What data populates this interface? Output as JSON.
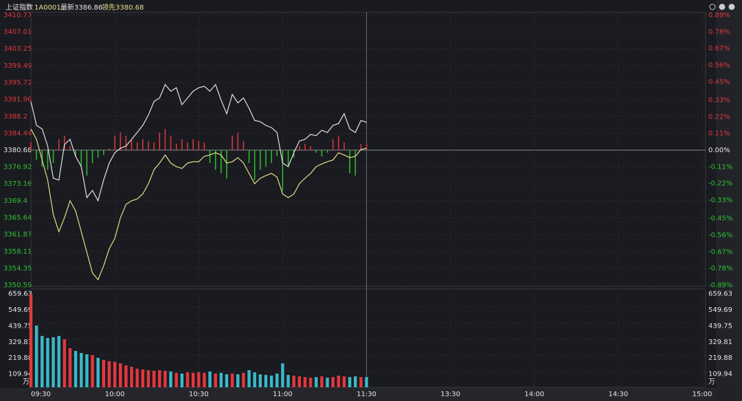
{
  "header": {
    "name": "上证指数",
    "code": "1A0001",
    "latest": "最新3386.86",
    "lead": "领先3380.68"
  },
  "chart_data": [
    {
      "type": "line",
      "x": [
        0,
        2,
        4,
        6,
        8,
        10,
        12,
        14,
        16,
        18,
        20,
        22,
        24,
        26,
        28,
        30,
        32,
        34,
        36,
        38,
        40,
        42,
        44,
        46,
        48,
        50,
        52,
        54,
        56,
        58,
        60,
        62,
        64,
        66,
        68,
        70,
        72,
        74,
        76,
        78,
        80,
        82,
        84,
        86,
        88,
        90,
        92,
        94,
        96,
        98,
        100,
        102,
        104,
        106,
        108,
        110,
        112,
        114,
        116,
        118,
        120
      ],
      "xlim": [
        0,
        240
      ],
      "xticks": [
        {
          "value": 0,
          "label": "09:30"
        },
        {
          "value": 30,
          "label": "10:00"
        },
        {
          "value": 60,
          "label": "10:30"
        },
        {
          "value": 90,
          "label": "11:00"
        },
        {
          "value": 120,
          "label": "11:30"
        },
        {
          "value": 150,
          "label": "13:30"
        },
        {
          "value": 180,
          "label": "14:00"
        },
        {
          "value": 210,
          "label": "14:30"
        },
        {
          "value": 240,
          "label": "15:00"
        }
      ],
      "ylim": [
        3350.59,
        3410.77
      ],
      "yticks": [
        3410.77,
        3407.01,
        3403.25,
        3399.49,
        3395.72,
        3391.96,
        3388.2,
        3384.44,
        3380.68,
        3376.92,
        3373.16,
        3369.4,
        3365.64,
        3361.87,
        3358.11,
        3354.35,
        3350.59
      ],
      "baseline": 3380.68,
      "y2lim": [
        -0.89,
        0.89
      ],
      "y2ticks": [
        {
          "value": 0.89,
          "label": "0.89%"
        },
        {
          "value": 0.78,
          "label": "0.78%"
        },
        {
          "value": 0.67,
          "label": "0.67%"
        },
        {
          "value": 0.56,
          "label": "0.56%"
        },
        {
          "value": 0.45,
          "label": "0.45%"
        },
        {
          "value": 0.33,
          "label": "0.33%"
        },
        {
          "value": 0.22,
          "label": "0.22%"
        },
        {
          "value": 0.11,
          "label": "0.11%"
        },
        {
          "value": 0,
          "label": "0.00%"
        },
        {
          "value": -0.11,
          "label": "-0.11%"
        },
        {
          "value": -0.22,
          "label": "-0.22%"
        },
        {
          "value": -0.33,
          "label": "-0.33%"
        },
        {
          "value": -0.45,
          "label": "-0.45%"
        },
        {
          "value": -0.56,
          "label": "-0.56%"
        },
        {
          "value": -0.67,
          "label": "-0.67%"
        },
        {
          "value": -0.78,
          "label": "-0.78%"
        },
        {
          "value": -0.89,
          "label": "-0.89%"
        }
      ],
      "grid": true,
      "up_color": "#e0383e",
      "down_color": "#2fc22f",
      "series": [
        {
          "color": "#e6e6e6",
          "values": [
            3391.5,
            3386.2,
            3385.4,
            3381.6,
            3374.4,
            3374.0,
            3381.9,
            3383.1,
            3379.3,
            3377.0,
            3370.1,
            3371.7,
            3369.4,
            3374.0,
            3377.8,
            3380.1,
            3381.1,
            3381.6,
            3383.1,
            3384.6,
            3386.2,
            3388.5,
            3391.5,
            3392.3,
            3395.3,
            3393.8,
            3394.6,
            3390.8,
            3392.3,
            3393.8,
            3394.6,
            3394.9,
            3393.8,
            3395.3,
            3391.8,
            3388.8,
            3393.1,
            3391.2,
            3392.3,
            3390.0,
            3387.3,
            3387.0,
            3386.2,
            3385.7,
            3384.6,
            3377.8,
            3377.0,
            3380.1,
            3382.7,
            3383.1,
            3384.2,
            3383.9,
            3385.1,
            3384.6,
            3386.2,
            3386.6,
            3388.8,
            3385.4,
            3384.6,
            3387.3,
            3386.86
          ]
        },
        {
          "color": "#e8e08a",
          "values": [
            3385.4,
            3383.1,
            3378.5,
            3374.0,
            3366.3,
            3362.5,
            3365.6,
            3369.4,
            3367.1,
            3362.5,
            3357.9,
            3353.3,
            3351.8,
            3354.9,
            3358.7,
            3361.0,
            3365.6,
            3368.6,
            3369.4,
            3369.8,
            3370.9,
            3373.2,
            3376.3,
            3377.8,
            3379.6,
            3377.8,
            3377.0,
            3376.6,
            3377.8,
            3378.1,
            3378.1,
            3379.3,
            3379.6,
            3380.1,
            3379.6,
            3377.8,
            3378.1,
            3379.0,
            3377.8,
            3375.5,
            3373.2,
            3374.4,
            3375.0,
            3375.5,
            3374.7,
            3370.9,
            3370.1,
            3370.9,
            3373.2,
            3374.4,
            3375.5,
            3377.0,
            3377.6,
            3378.1,
            3378.5,
            3380.1,
            3379.6,
            3379.0,
            3379.3,
            3380.8,
            3381.1
          ]
        }
      ],
      "bars": [
        3382.4,
        3378.5,
        3377.0,
        3376.3,
        3377.8,
        3383.1,
        3383.9,
        3381.6,
        3379.3,
        3377.0,
        3375.0,
        3377.8,
        3379.0,
        3379.6,
        3381.1,
        3383.9,
        3384.6,
        3383.9,
        3383.1,
        3382.4,
        3383.1,
        3382.7,
        3382.4,
        3384.6,
        3385.4,
        3383.9,
        3382.1,
        3383.1,
        3382.4,
        3383.1,
        3382.7,
        3382.4,
        3377.8,
        3376.3,
        3375.5,
        3374.4,
        3383.9,
        3384.6,
        3382.7,
        3377.8,
        3374.0,
        3376.3,
        3377.0,
        3377.8,
        3379.3,
        3371.7,
        3377.0,
        3379.0,
        3381.6,
        3382.1,
        3381.6,
        3380.1,
        3379.3,
        3380.1,
        3383.1,
        3383.9,
        3382.4,
        3375.5,
        3375.0,
        3382.1,
        3382.1
      ]
    },
    {
      "type": "bar",
      "ylim": [
        0,
        659.63
      ],
      "yticks": [
        659.63,
        549.69,
        439.75,
        329.81,
        219.88,
        109.94
      ],
      "unit": "万",
      "up_color": "#e0383e",
      "down_color": "#3ab8c8",
      "values": [
        640,
        423,
        352,
        338,
        343,
        352,
        329,
        268,
        249,
        235,
        226,
        221,
        202,
        188,
        179,
        174,
        164,
        150,
        141,
        127,
        122,
        117,
        113,
        117,
        113,
        108,
        99,
        94,
        103,
        99,
        103,
        99,
        108,
        94,
        99,
        89,
        94,
        89,
        99,
        117,
        103,
        89,
        85,
        80,
        94,
        164,
        85,
        80,
        75,
        70,
        66,
        70,
        75,
        66,
        70,
        80,
        75,
        70,
        75,
        70,
        70
      ]
    }
  ]
}
